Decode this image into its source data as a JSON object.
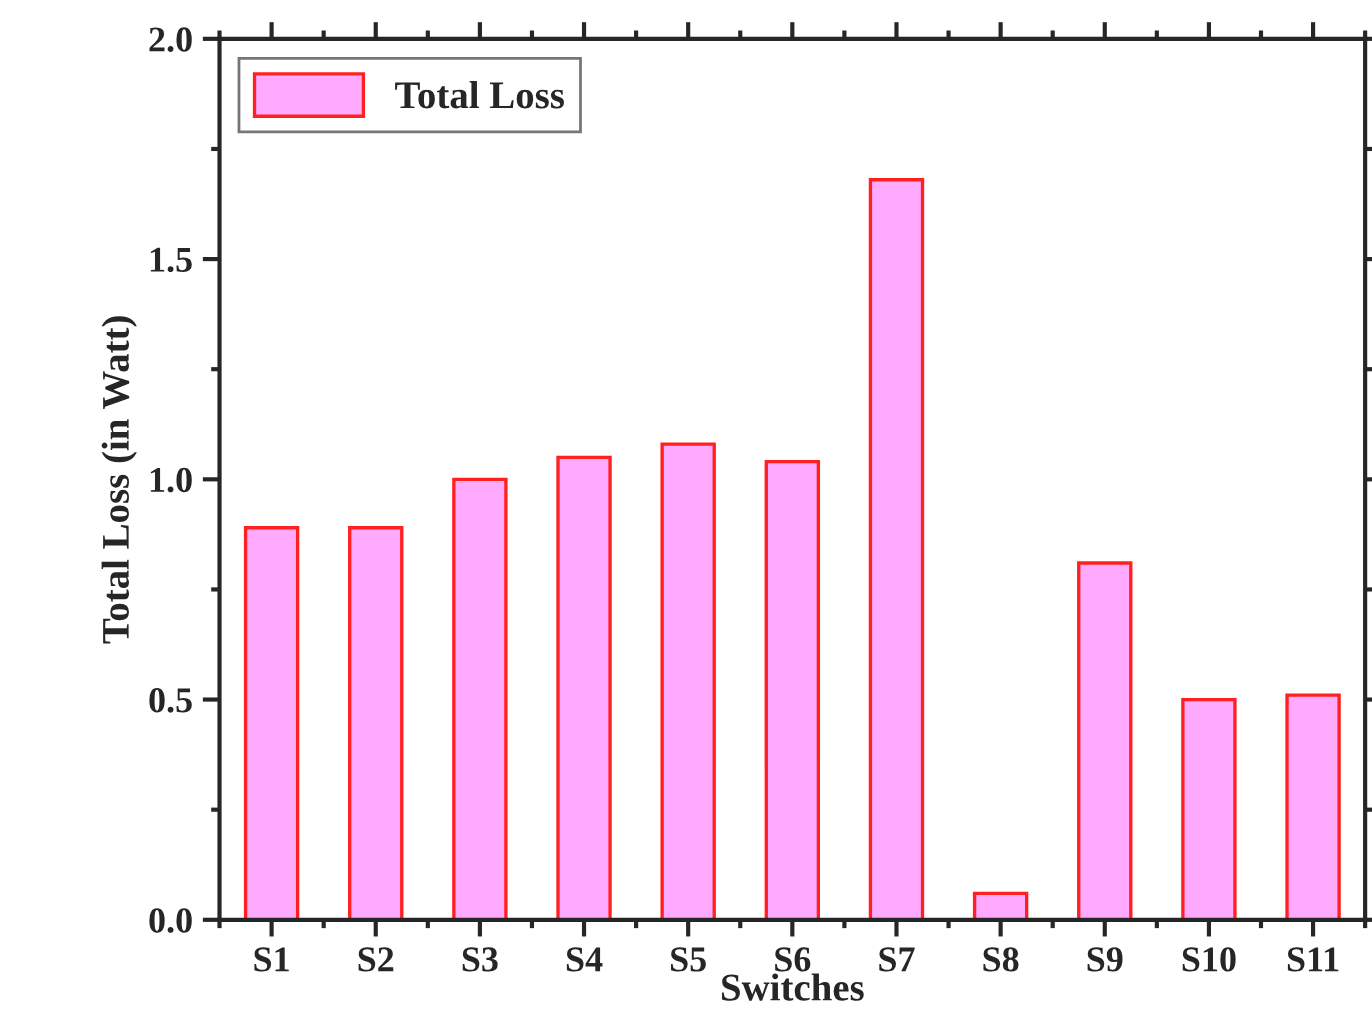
{
  "chart_data": {
    "type": "bar",
    "xlabel": "Switches",
    "ylabel": "Total Loss (in Watt)",
    "categories": [
      "S1",
      "S2",
      "S3",
      "S4",
      "S5",
      "S6",
      "S7",
      "S8",
      "S9",
      "S10",
      "S11"
    ],
    "series": [
      {
        "name": "Total Loss",
        "color": "#ffaaff",
        "values": [
          0.89,
          0.89,
          1.0,
          1.05,
          1.08,
          1.04,
          1.68,
          0.06,
          0.81,
          0.5,
          0.51
        ]
      }
    ],
    "ylim": [
      0,
      2.0
    ],
    "yticks": [
      {
        "value": 0,
        "label": "0.0"
      },
      0.5,
      {
        "value": 1,
        "label": "1.0"
      },
      1.5,
      {
        "value": 2,
        "label": "2.0"
      }
    ],
    "grid": false,
    "legend": "top left"
  }
}
